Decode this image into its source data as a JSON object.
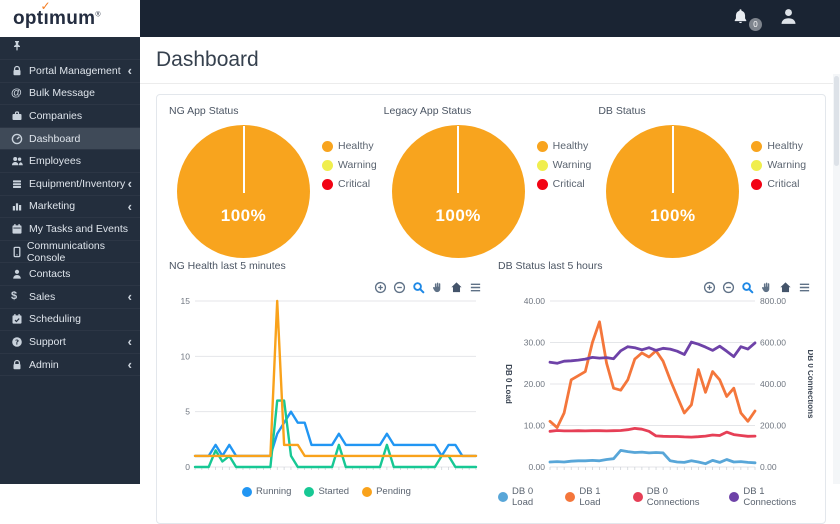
{
  "header": {
    "logo": {
      "prefix": "opt",
      "dotless_i": "ı",
      "suffix": "mum",
      "check": "✓",
      "reg": "®"
    },
    "bell_badge": "0"
  },
  "sidebar": {
    "chevron_char": "‹",
    "items": [
      {
        "label": "Portal Management",
        "icon": "lock",
        "chevron": true,
        "active": false
      },
      {
        "label": "Bulk Message",
        "icon": "at",
        "chevron": false,
        "active": false
      },
      {
        "label": "Companies",
        "icon": "briefcase",
        "chevron": false,
        "active": false
      },
      {
        "label": "Dashboard",
        "icon": "dashboard",
        "chevron": false,
        "active": true
      },
      {
        "label": "Employees",
        "icon": "users",
        "chevron": false,
        "active": false
      },
      {
        "label": "Equipment/Inventory",
        "icon": "equipment",
        "chevron": true,
        "active": false
      },
      {
        "label": "Marketing",
        "icon": "marketing",
        "chevron": true,
        "active": false
      },
      {
        "label": "My Tasks and Events",
        "icon": "calendar",
        "chevron": false,
        "active": false
      },
      {
        "label": "Communications Console",
        "icon": "mobile",
        "chevron": false,
        "active": false
      },
      {
        "label": "Contacts",
        "icon": "contact",
        "chevron": false,
        "active": false
      },
      {
        "label": "Sales",
        "icon": "dollar",
        "chevron": true,
        "active": false
      },
      {
        "label": "Scheduling",
        "icon": "schedule",
        "chevron": false,
        "active": false
      },
      {
        "label": "Support",
        "icon": "support",
        "chevron": true,
        "active": false
      },
      {
        "label": "Admin",
        "icon": "lock",
        "chevron": true,
        "active": false
      }
    ]
  },
  "page": {
    "title": "Dashboard"
  },
  "toolbar": {
    "icons": [
      "zoom-in",
      "zoom-out",
      "search",
      "pan",
      "home",
      "menu"
    ]
  },
  "chart_data": [
    {
      "type": "pie",
      "title": "NG App Status",
      "center_label": "100%",
      "labels": [
        "Healthy",
        "Warning",
        "Critical"
      ],
      "values": [
        100,
        0,
        0
      ],
      "colors": [
        "#f8a41e",
        "#f0ee4e",
        "#f20314"
      ],
      "legend_position": "right"
    },
    {
      "type": "pie",
      "title": "Legacy App Status",
      "center_label": "100%",
      "labels": [
        "Healthy",
        "Warning",
        "Critical"
      ],
      "values": [
        100,
        0,
        0
      ],
      "colors": [
        "#f8a41e",
        "#f0ee4e",
        "#f20314"
      ],
      "legend_position": "right"
    },
    {
      "type": "pie",
      "title": "DB Status",
      "center_label": "100%",
      "labels": [
        "Healthy",
        "Warning",
        "Critical"
      ],
      "values": [
        100,
        0,
        0
      ],
      "colors": [
        "#f8a41e",
        "#f0ee4e",
        "#f20314"
      ],
      "legend_position": "right"
    },
    {
      "type": "line",
      "title": "NG Health last 5 minutes",
      "ylim": [
        0,
        15
      ],
      "yticks": [
        0,
        5,
        10,
        15
      ],
      "tick_decimals": 0,
      "grid": true,
      "legend_position": "bottom",
      "series": [
        {
          "name": "Running",
          "color": "#2196f3",
          "axis": "left",
          "values": [
            1,
            1,
            1,
            2,
            1,
            2,
            1,
            1,
            1,
            1,
            1,
            1,
            3,
            4,
            5,
            4,
            4,
            2,
            2,
            2,
            2,
            3,
            2,
            2,
            2,
            2,
            2,
            2,
            3,
            2,
            2,
            2,
            2,
            2,
            2,
            2,
            1,
            2,
            2,
            1,
            1,
            1
          ]
        },
        {
          "name": "Started",
          "color": "#17c894",
          "axis": "left",
          "values": [
            0,
            0,
            0,
            1.5,
            0.5,
            1,
            0,
            0,
            0,
            0,
            0,
            0,
            6,
            6,
            1,
            0,
            0,
            0,
            0,
            0,
            0,
            2,
            0,
            0,
            0,
            0,
            0,
            0,
            2,
            0,
            0,
            0,
            0,
            0,
            0,
            0,
            1,
            1,
            0,
            0,
            0,
            0
          ]
        },
        {
          "name": "Pending",
          "color": "#f9a21b",
          "axis": "left",
          "values": [
            1,
            1,
            1,
            1,
            1,
            1,
            1,
            1,
            1,
            1,
            1,
            1,
            15,
            2,
            2,
            2,
            1,
            1,
            1,
            1,
            1,
            1,
            1,
            1,
            1,
            1,
            1,
            1,
            1,
            1,
            1,
            1,
            1,
            1,
            1,
            1,
            1,
            1,
            1,
            1,
            1,
            1
          ]
        }
      ]
    },
    {
      "type": "line",
      "title": "DB Status last 5 hours",
      "ylabel": "DB 0 Load",
      "y2label": "DB 0 Connections",
      "ylim": [
        0,
        40
      ],
      "yticks": [
        0,
        10,
        20,
        30,
        40
      ],
      "y2lim": [
        0,
        800
      ],
      "y2ticks": [
        0,
        200,
        400,
        600,
        800
      ],
      "tick_decimals": 2,
      "grid": true,
      "legend_position": "bottom",
      "series": [
        {
          "name": "DB 0 Load",
          "color": "#58a6d8",
          "axis": "left",
          "values": [
            1.2,
            1.3,
            1.2,
            1.4,
            1.5,
            1.5,
            1.6,
            1.5,
            1.8,
            2.0,
            4.0,
            3.7,
            3.5,
            3.6,
            3.4,
            3.5,
            3.4,
            1.5,
            1.2,
            1.1,
            1.5,
            1.2,
            0.8,
            1.6,
            1.1,
            1.8,
            1.2,
            1.3,
            1.1,
            1.0
          ]
        },
        {
          "name": "DB 1 Load",
          "color": "#f4763b",
          "axis": "left",
          "values": [
            11,
            9.5,
            13,
            21,
            22,
            23,
            30,
            35,
            25,
            19,
            18.5,
            21,
            26,
            27.5,
            26.5,
            28,
            25.5,
            21,
            17,
            13,
            15,
            23.5,
            18,
            23,
            21,
            17,
            19,
            13,
            11,
            13.5
          ]
        },
        {
          "name": "DB 0 Connections",
          "color": "#e63f56",
          "axis": "right",
          "values": [
            172,
            176,
            174,
            174,
            175,
            174,
            175,
            175,
            174,
            175,
            176,
            180,
            186,
            182,
            172,
            150,
            148,
            147,
            147,
            145,
            144,
            146,
            149,
            154,
            152,
            168,
            156,
            152,
            148,
            149
          ]
        },
        {
          "name": "DB 1 Connections",
          "color": "#6e42a8",
          "axis": "right",
          "values": [
            505,
            500,
            510,
            512,
            515,
            520,
            528,
            525,
            527,
            522,
            560,
            580,
            575,
            565,
            575,
            562,
            572,
            568,
            558,
            542,
            602,
            592,
            578,
            562,
            582,
            558,
            532,
            580,
            568,
            598
          ]
        }
      ]
    }
  ]
}
